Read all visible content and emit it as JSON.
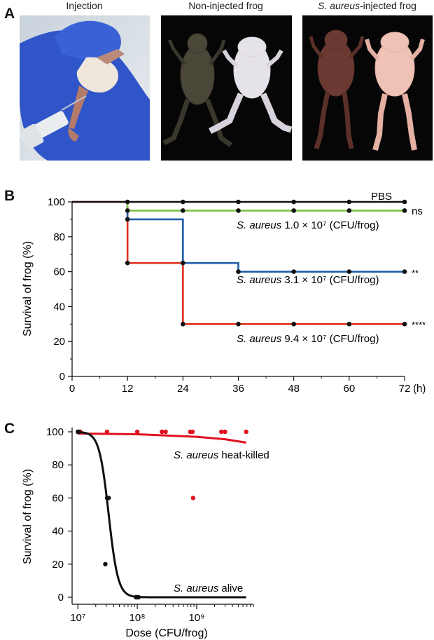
{
  "panels": {
    "a": "A",
    "b": "B",
    "c": "C"
  },
  "photos": [
    {
      "title": "Injection",
      "title_italic": "",
      "title_rest": ""
    },
    {
      "title": "Non-injected frog",
      "title_italic": "",
      "title_rest": ""
    },
    {
      "title": "",
      "title_italic": "S. aureus",
      "title_rest": "-injected frog"
    }
  ],
  "colors": {
    "pbs": "#111111",
    "low": "#7cc242",
    "mid": "#1f5ea8",
    "high": "#e0301e",
    "heat_killed": "#e0101e",
    "alive": "#111111",
    "glove": "#2b4fc0"
  },
  "chart_data": [
    {
      "type": "line",
      "step": true,
      "ylabel": "Survival of frog (%)",
      "xunit": "(h)",
      "xlim": [
        0,
        72
      ],
      "ylim": [
        0,
        100
      ],
      "xticks": [
        0,
        12,
        24,
        36,
        48,
        60,
        72
      ],
      "yticks": [
        0,
        20,
        40,
        60,
        80,
        100
      ],
      "grid": false,
      "series": [
        {
          "name": "PBS",
          "italic": "",
          "rest": "PBS",
          "sig": "",
          "color_key": "pbs",
          "x": [
            0,
            12,
            24,
            36,
            48,
            60,
            72
          ],
          "y": [
            100,
            100,
            100,
            100,
            100,
            100,
            100
          ]
        },
        {
          "name": "S. aureus 1.0 × 10⁷ (CFU/frog)",
          "italic": "S. aureus",
          "rest": " 1.0 × 10⁷ (CFU/frog)",
          "sig": "ns",
          "color_key": "low",
          "x": [
            12,
            24,
            36,
            48,
            60,
            72
          ],
          "y": [
            95,
            95,
            95,
            95,
            95,
            95
          ]
        },
        {
          "name": "S. aureus 3.1 × 10⁷ (CFU/frog)",
          "italic": "S. aureus",
          "rest": " 3.1 × 10⁷ (CFU/frog)",
          "sig": "**",
          "color_key": "mid",
          "x": [
            12,
            24,
            36,
            48,
            60,
            72
          ],
          "y": [
            90,
            65,
            60,
            60,
            60,
            60
          ]
        },
        {
          "name": "S. aureus 9.4 × 10⁷ (CFU/frog)",
          "italic": "S. aureus",
          "rest": " 9.4 × 10⁷ (CFU/frog)",
          "sig": "****",
          "color_key": "high",
          "x": [
            0,
            12,
            24,
            36,
            48,
            60,
            72
          ],
          "y": [
            100,
            65,
            30,
            30,
            30,
            30,
            30
          ]
        }
      ]
    },
    {
      "type": "scatter",
      "xscale": "log",
      "xlabel": "Dose (CFU/frog)",
      "ylabel": "Survival of frog (%)",
      "xlim": [
        8000000,
        9000000000
      ],
      "ylim": [
        0,
        100
      ],
      "xticks": [
        "10⁷",
        "10⁸",
        "10⁹"
      ],
      "yticks": [
        0,
        20,
        40,
        60,
        80,
        100
      ],
      "grid": false,
      "series": [
        {
          "name": "S. aureus heat-killed",
          "italic": "S. aureus",
          "rest": " heat-killed",
          "color_key": "heat_killed",
          "points": [
            [
              10200000,
              100
            ],
            [
              11000000,
              100
            ],
            [
              31000000,
              100
            ],
            [
              100000000,
              100
            ],
            [
              260000000,
              100
            ],
            [
              300000000,
              100
            ],
            [
              780000000,
              100
            ],
            [
              850000000,
              100
            ],
            [
              2600000000,
              100
            ],
            [
              3000000000,
              100
            ],
            [
              6800000000,
              100
            ],
            [
              870000000,
              60
            ]
          ],
          "fit": [
            [
              10000000,
              99
            ],
            [
              100000000,
              98.5
            ],
            [
              1000000000,
              97
            ],
            [
              3000000000,
              95.5
            ],
            [
              6800000000,
              93.5
            ]
          ]
        },
        {
          "name": "S. aureus alive",
          "italic": "S. aureus",
          "rest": " alive",
          "color_key": "alive",
          "points": [
            [
              10000000,
              100
            ],
            [
              10400000,
              100
            ],
            [
              31000000,
              60
            ],
            [
              33000000,
              60
            ],
            [
              29000000,
              20
            ],
            [
              95000000,
              0
            ],
            [
              100000000,
              0
            ],
            [
              105000000,
              0
            ]
          ],
          "fit_logistic": {
            "ec50": 33000000,
            "hill": 5.5,
            "xmin": 10000000,
            "xmax": 6800000000
          }
        }
      ]
    }
  ]
}
